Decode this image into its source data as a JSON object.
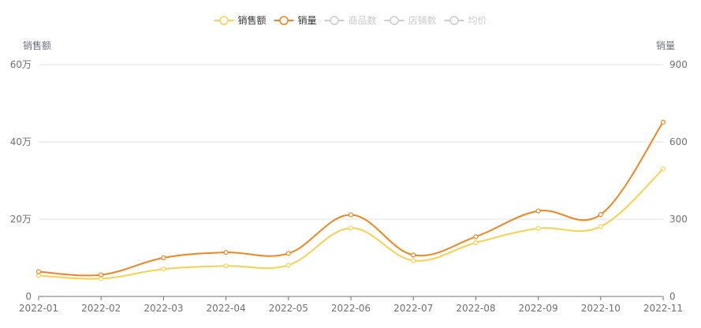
{
  "chart_data": {
    "type": "line",
    "categories": [
      "2022-01",
      "2022-02",
      "2022-03",
      "2022-04",
      "2022-05",
      "2022-06",
      "2022-07",
      "2022-08",
      "2022-09",
      "2022-10",
      "2022-11"
    ],
    "y_left": {
      "name": "销售额",
      "ylim": [
        0,
        600000
      ],
      "ticks": [
        "0",
        "20万",
        "40万",
        "60万"
      ]
    },
    "y_right": {
      "name": "销量",
      "ylim": [
        0,
        900
      ],
      "ticks": [
        "0",
        "300",
        "600",
        "900"
      ]
    },
    "series": [
      {
        "name": "销售额",
        "axis": "left",
        "color": "#f7d14f",
        "values": [
          54000,
          46000,
          71000,
          79000,
          81000,
          177000,
          93000,
          139000,
          176000,
          181000,
          330000
        ]
      },
      {
        "name": "销量",
        "axis": "right",
        "color": "#f08520",
        "values": [
          96,
          84,
          150,
          171,
          167,
          317,
          161,
          232,
          332,
          318,
          677
        ]
      }
    ],
    "legend": {
      "placement": "top-center",
      "items": [
        {
          "label": "销售额",
          "active": true,
          "color": "#f7d14f"
        },
        {
          "label": "销量",
          "active": true,
          "color": "#f08520"
        },
        {
          "label": "商品数",
          "active": false,
          "color": "#cccccc"
        },
        {
          "label": "店铺数",
          "active": false,
          "color": "#cccccc"
        },
        {
          "label": "均价",
          "active": false,
          "color": "#cccccc"
        }
      ]
    },
    "grid": true,
    "smooth": true
  }
}
